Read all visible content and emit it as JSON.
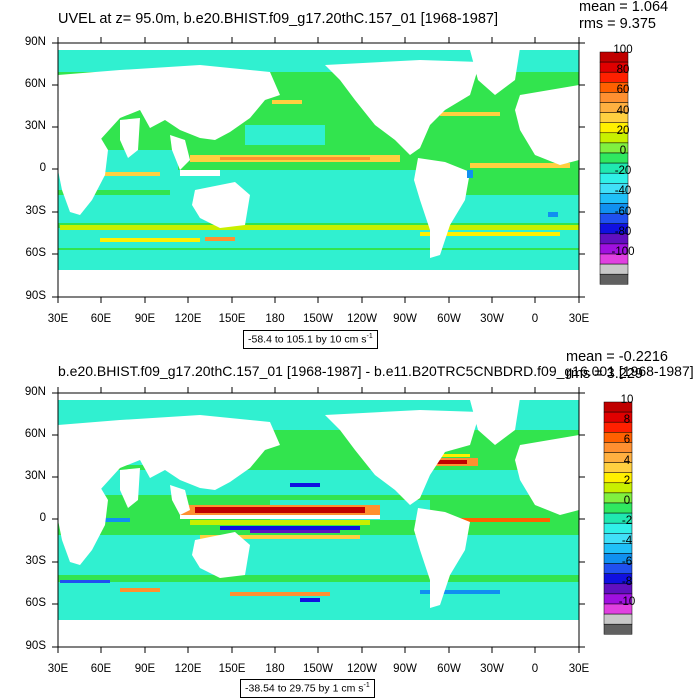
{
  "panels": [
    {
      "title": "UVEL at z=  95.0m, b.e20.BHIST.f09_g17.20thC.157_01 [1968-1987]",
      "mean": "mean = 1.064",
      "rms": "rms = 9.375",
      "range_text": "-58.4 to 105.1 by 10 cm s",
      "range_unit_exp": "-1",
      "colorbar_labels": [
        "100",
        "80",
        "60",
        "40",
        "20",
        "0",
        "-20",
        "-40",
        "-60",
        "-80",
        "-100"
      ]
    },
    {
      "title": "b.e20.BHIST.f09_g17.20thC.157_01 [1968-1987] - b.e11.B20TRC5CNBDRD.f09_g16.001 [1968-1987]",
      "mean": "mean = -0.2216",
      "rms": "rms = 3.229",
      "range_text": "-38.54 to 29.75 by 1 cm s",
      "range_unit_exp": "-1",
      "colorbar_labels": [
        "10",
        "8",
        "6",
        "4",
        "2",
        "0",
        "-2",
        "-4",
        "-6",
        "-8",
        "-10"
      ]
    }
  ],
  "lat_labels": [
    "90N",
    "60N",
    "30N",
    "0",
    "30S",
    "60S",
    "90S"
  ],
  "lon_labels": [
    "30E",
    "60E",
    "90E",
    "120E",
    "150E",
    "180",
    "150W",
    "120W",
    "90W",
    "60W",
    "30W",
    "0",
    "30E"
  ],
  "colormap": [
    "#c00000",
    "#e00000",
    "#ff2000",
    "#ff6000",
    "#ff9030",
    "#ffb040",
    "#ffd040",
    "#fff000",
    "#c8f000",
    "#80f040",
    "#30e860",
    "#20e8b0",
    "#30f0e8",
    "#40e0f8",
    "#20c0f8",
    "#1090f0",
    "#2050f0",
    "#1010e0",
    "#6010c0",
    "#a010e0",
    "#e040e0",
    "#c8c8c8",
    "#606060"
  ],
  "colors": {
    "ocean_base": "#32e44e",
    "land": "#ffffff"
  }
}
